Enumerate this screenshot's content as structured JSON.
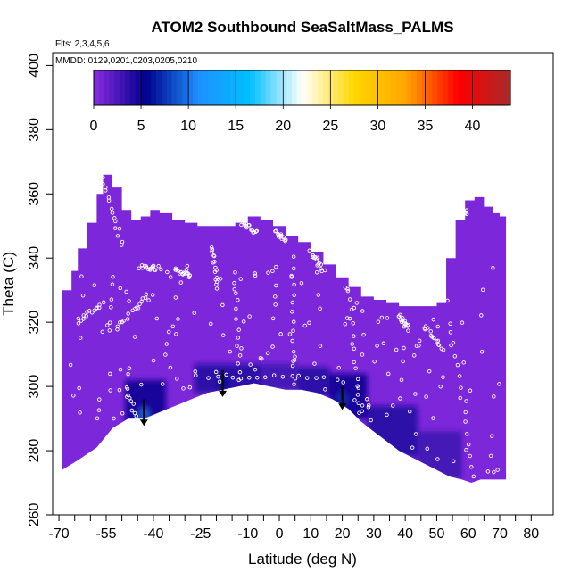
{
  "chart_data": {
    "type": "heatmap",
    "title": "ATOM2 Southbound SeaSaltMass_PALMS",
    "flights_label": "Flts: 2,3,4,5,6",
    "mmdd_label": "MMDD: 0129,0201,0203,0205,0210",
    "xlabel": "Latitude (deg N)",
    "ylabel": "Theta (C)",
    "xlim": [
      -72,
      87
    ],
    "ylim": [
      260,
      404
    ],
    "x_ticks": [
      -70,
      -55,
      -40,
      -25,
      -10,
      0,
      10,
      20,
      30,
      40,
      50,
      60,
      70,
      80
    ],
    "x_minor_ticks": [
      -65,
      -60,
      -50,
      -45,
      -35,
      -30,
      -20,
      -15,
      -5,
      5,
      15,
      25,
      35,
      45,
      55,
      65,
      75
    ],
    "y_ticks": [
      260,
      280,
      300,
      320,
      340,
      360,
      380,
      400
    ],
    "colorbar": {
      "range": [
        0,
        44
      ],
      "tick_values": [
        0,
        5,
        10,
        15,
        20,
        25,
        30,
        35,
        40
      ],
      "tick_labels": [
        "0",
        "5",
        "10",
        "15",
        "20",
        "25",
        "30",
        "35",
        "40"
      ],
      "colors": [
        "#8a2be2",
        "#00008b",
        "#1e90ff",
        "#00bfff",
        "#ffffff",
        "#ffd700",
        "#ffa500",
        "#ff0000",
        "#a52a2a"
      ]
    },
    "background_value": 0.5,
    "colors": {
      "background_field": "#8a2be2",
      "low": "#00008b",
      "mid": "#1e90ff",
      "sample_points": "#ffffff"
    },
    "field_top_boundary": [
      [
        -69,
        330
      ],
      [
        -66,
        336
      ],
      [
        -64,
        343
      ],
      [
        -61,
        351
      ],
      [
        -58,
        360
      ],
      [
        -56,
        366
      ],
      [
        -53,
        362
      ],
      [
        -50,
        355
      ],
      [
        -47,
        352
      ],
      [
        -44,
        353
      ],
      [
        -41,
        355
      ],
      [
        -38,
        354
      ],
      [
        -34,
        352
      ],
      [
        -30,
        351
      ],
      [
        -26,
        350
      ],
      [
        -22,
        350
      ],
      [
        -18,
        350
      ],
      [
        -14,
        351
      ],
      [
        -10,
        353
      ],
      [
        -6,
        352
      ],
      [
        -2,
        350
      ],
      [
        2,
        347
      ],
      [
        6,
        345
      ],
      [
        10,
        342
      ],
      [
        14,
        338
      ],
      [
        18,
        334
      ],
      [
        22,
        331
      ],
      [
        26,
        328
      ],
      [
        30,
        327
      ],
      [
        34,
        326
      ],
      [
        38,
        325
      ],
      [
        42,
        325
      ],
      [
        46,
        325
      ],
      [
        50,
        326
      ],
      [
        53,
        340
      ],
      [
        56,
        352
      ],
      [
        59,
        358
      ],
      [
        62,
        359
      ],
      [
        65,
        356
      ],
      [
        68,
        354
      ],
      [
        70,
        353
      ],
      [
        72,
        351
      ]
    ],
    "ground_boundary": [
      [
        -69,
        274
      ],
      [
        -64,
        277
      ],
      [
        -58,
        281
      ],
      [
        -53,
        287
      ],
      [
        -48,
        290
      ],
      [
        -43,
        290
      ],
      [
        -38,
        292
      ],
      [
        -33,
        294
      ],
      [
        -28,
        296
      ],
      [
        -23,
        298
      ],
      [
        -18,
        299
      ],
      [
        -13,
        300
      ],
      [
        -8,
        301
      ],
      [
        -3,
        300
      ],
      [
        2,
        299
      ],
      [
        7,
        299
      ],
      [
        12,
        298
      ],
      [
        17,
        296
      ],
      [
        22,
        293
      ],
      [
        26,
        289
      ],
      [
        30,
        286
      ],
      [
        34,
        283
      ],
      [
        38,
        280
      ],
      [
        42,
        278
      ],
      [
        46,
        276
      ],
      [
        50,
        274
      ],
      [
        54,
        272
      ],
      [
        58,
        271
      ],
      [
        61,
        270
      ],
      [
        64,
        271
      ],
      [
        68,
        271
      ],
      [
        72,
        271
      ]
    ],
    "high_concentration_regions": [
      {
        "x": [
          -49,
          -36
        ],
        "y": [
          287,
          302
        ],
        "value": 5,
        "peak": [
          -43,
          291,
          9
        ]
      },
      {
        "x": [
          -27,
          -6
        ],
        "y": [
          298,
          307
        ],
        "value": 4,
        "peak": [
          -18,
          301,
          6
        ]
      },
      {
        "x": [
          -6,
          6
        ],
        "y": [
          299,
          307
        ],
        "value": 3
      },
      {
        "x": [
          6,
          16
        ],
        "y": [
          297,
          306
        ],
        "value": 4
      },
      {
        "x": [
          16,
          28
        ],
        "y": [
          290,
          304
        ],
        "value": 5,
        "peak": [
          20,
          296,
          7
        ]
      },
      {
        "x": [
          28,
          44
        ],
        "y": [
          278,
          294
        ],
        "value": 4
      },
      {
        "x": [
          44,
          58
        ],
        "y": [
          271,
          286
        ],
        "value": 3
      }
    ],
    "arrows": [
      {
        "x": -43,
        "y_from": 296,
        "y_to": 288
      },
      {
        "x": -18,
        "y_from": 305,
        "y_to": 297
      },
      {
        "x": 20,
        "y_from": 300,
        "y_to": 293
      }
    ],
    "sample_tracks": [
      {
        "x_from": -56,
        "x_to": -50,
        "y_from": 365,
        "y_to": 344
      },
      {
        "x_from": -64,
        "x_to": -56,
        "y_from": 320,
        "y_to": 326
      },
      {
        "x_from": -52,
        "x_to": -42,
        "y_from": 318,
        "y_to": 328
      },
      {
        "x_from": -44,
        "x_to": -38,
        "y_from": 337,
        "y_to": 337
      },
      {
        "x_from": -33,
        "x_to": -28,
        "y_from": 337,
        "y_to": 334
      },
      {
        "x_from": -21,
        "x_to": -20,
        "y_from": 344,
        "y_to": 330
      },
      {
        "x_from": -12,
        "x_to": -7,
        "y_from": 351,
        "y_to": 348
      },
      {
        "x_from": -1,
        "x_to": 2,
        "y_from": 348,
        "y_to": 346
      },
      {
        "x_from": 10,
        "x_to": 14,
        "y_from": 342,
        "y_to": 336
      },
      {
        "x_from": 38,
        "x_to": 41,
        "y_from": 322,
        "y_to": 318
      },
      {
        "x_from": 46,
        "x_to": 52,
        "y_from": 319,
        "y_to": 312
      },
      {
        "x_from": 55,
        "x_to": 60,
        "y_from": 358,
        "y_to": 354
      },
      {
        "x_from": -22,
        "x_to": 14,
        "y_from": 303,
        "y_to": 303
      },
      {
        "x_from": -14,
        "x_to": -12,
        "y_from": 335,
        "y_to": 296
      },
      {
        "x_from": 4,
        "x_to": 5,
        "y_from": 340,
        "y_to": 300
      },
      {
        "x_from": 22,
        "x_to": 26,
        "y_from": 330,
        "y_to": 292
      },
      {
        "x_from": -49,
        "x_to": -44,
        "y_from": 300,
        "y_to": 286
      },
      {
        "x_from": 54,
        "x_to": 62,
        "y_from": 320,
        "y_to": 272
      }
    ]
  }
}
